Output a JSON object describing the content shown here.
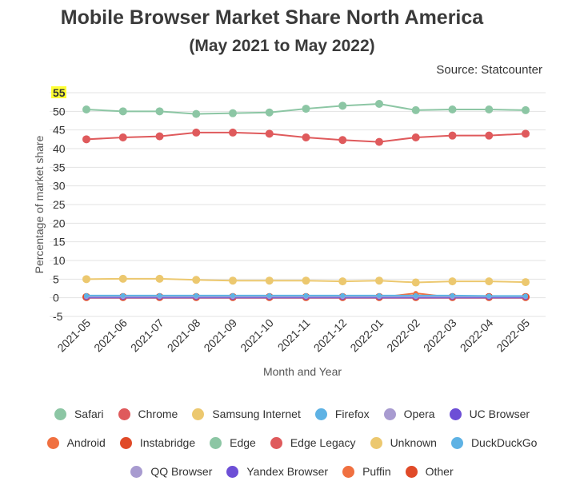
{
  "header": {
    "title": "Mobile Browser Market Share North America",
    "subtitle": "(May 2021 to May 2022)",
    "source": "Source: Statcounter"
  },
  "chart_data": {
    "type": "line",
    "title": "Mobile Browser Market Share North America",
    "subtitle": "(May 2021 to May 2022)",
    "xlabel": "Month and Year",
    "ylabel": "Percentage of market share",
    "ylim": [
      -5,
      55
    ],
    "yticks": [
      -5,
      0,
      5,
      10,
      15,
      20,
      25,
      30,
      35,
      40,
      45,
      50,
      55
    ],
    "highlighted_tick": "55",
    "grid": true,
    "legend_position": "bottom",
    "categories": [
      "2021-05",
      "2021-06",
      "2021-07",
      "2021-08",
      "2021-09",
      "2021-10",
      "2021-11",
      "2021-12",
      "2022-01",
      "2022-02",
      "2022-03",
      "2022-04",
      "2022-05"
    ],
    "series": [
      {
        "name": "Safari",
        "color": "#8cc6a4",
        "values": [
          50.5,
          50.0,
          50.0,
          49.3,
          49.5,
          49.7,
          50.7,
          51.5,
          52.0,
          50.3,
          50.5,
          50.5,
          50.3
        ]
      },
      {
        "name": "Chrome",
        "color": "#df5a5c",
        "values": [
          42.5,
          43.0,
          43.3,
          44.3,
          44.3,
          44.0,
          43.0,
          42.3,
          41.8,
          43.0,
          43.5,
          43.5,
          44.0
        ]
      },
      {
        "name": "Samsung Internet",
        "color": "#ecc86f",
        "values": [
          5.0,
          5.1,
          5.1,
          4.8,
          4.6,
          4.6,
          4.6,
          4.4,
          4.6,
          4.1,
          4.4,
          4.4,
          4.2
        ]
      },
      {
        "name": "Firefox",
        "color": "#5eb2e4",
        "values": [
          0.6,
          0.6,
          0.6,
          0.6,
          0.6,
          0.6,
          0.6,
          0.6,
          0.6,
          0.6,
          0.6,
          0.5,
          0.5
        ]
      },
      {
        "name": "Opera",
        "color": "#a89bd0",
        "values": [
          0.3,
          0.3,
          0.3,
          0.3,
          0.3,
          0.3,
          0.3,
          0.3,
          0.3,
          0.3,
          0.3,
          0.3,
          0.3
        ]
      },
      {
        "name": "UC Browser",
        "color": "#6d4fd6",
        "values": [
          0.1,
          0.1,
          0.1,
          0.1,
          0.1,
          0.1,
          0.1,
          0.1,
          0.1,
          0.1,
          0.1,
          0.1,
          0.1
        ]
      },
      {
        "name": "Android",
        "color": "#f07040",
        "values": [
          0.1,
          0.1,
          0.1,
          0.1,
          0.1,
          0.1,
          0.1,
          0.1,
          0.1,
          1.2,
          0.1,
          0.1,
          0.1
        ]
      },
      {
        "name": "Instabridge",
        "color": "#e04a28",
        "values": [
          0.2,
          0.2,
          0.2,
          0.2,
          0.2,
          0.2,
          0.2,
          0.2,
          0.2,
          0.2,
          0.2,
          0.2,
          0.2
        ]
      },
      {
        "name": "Edge",
        "color": "#8cc6a4",
        "values": [
          0.3,
          0.3,
          0.3,
          0.3,
          0.3,
          0.3,
          0.3,
          0.3,
          0.3,
          0.3,
          0.3,
          0.3,
          0.3
        ]
      },
      {
        "name": "Edge Legacy",
        "color": "#df5a5c",
        "values": [
          0.0,
          0.0,
          0.0,
          0.0,
          0.0,
          0.0,
          0.0,
          0.0,
          0.0,
          0.0,
          0.0,
          0.0,
          0.0
        ]
      },
      {
        "name": "Unknown",
        "color": "#ecc86f",
        "values": [
          0.1,
          0.1,
          0.1,
          0.1,
          0.1,
          0.1,
          0.1,
          0.1,
          0.1,
          0.1,
          0.1,
          0.1,
          0.1
        ]
      },
      {
        "name": "DuckDuckGo",
        "color": "#5eb2e4",
        "values": [
          0.1,
          0.1,
          0.1,
          0.1,
          0.1,
          0.1,
          0.1,
          0.1,
          0.1,
          0.1,
          0.1,
          0.1,
          0.1
        ]
      },
      {
        "name": "QQ Browser",
        "color": "#a89bd0",
        "values": [
          0.0,
          0.0,
          0.0,
          0.0,
          0.0,
          0.0,
          0.0,
          0.0,
          0.0,
          0.0,
          0.0,
          0.0,
          0.0
        ]
      },
      {
        "name": "Yandex Browser",
        "color": "#6d4fd6",
        "values": [
          0.0,
          0.0,
          0.0,
          0.0,
          0.0,
          0.0,
          0.0,
          0.0,
          0.0,
          0.0,
          0.0,
          0.0,
          0.0
        ]
      },
      {
        "name": "Puffin",
        "color": "#f07040",
        "values": [
          0.0,
          0.0,
          0.0,
          0.0,
          0.0,
          0.0,
          0.0,
          0.0,
          0.0,
          0.0,
          0.0,
          0.0,
          0.0
        ]
      },
      {
        "name": "Other",
        "color": "#e04a28",
        "values": [
          0.2,
          0.2,
          0.2,
          0.2,
          0.2,
          0.2,
          0.2,
          0.2,
          0.2,
          0.2,
          0.2,
          0.2,
          0.2
        ]
      }
    ]
  },
  "legend_rows": [
    [
      0,
      1,
      2,
      3,
      4,
      5
    ],
    [
      6,
      7,
      8,
      9,
      10,
      11
    ],
    [
      12,
      13,
      14,
      15
    ]
  ],
  "draw_order": [
    15,
    14,
    13,
    12,
    11,
    10,
    9,
    8,
    7,
    6,
    5,
    4,
    3,
    2,
    1,
    0
  ],
  "marker_series": [
    0,
    1,
    2,
    15
  ]
}
